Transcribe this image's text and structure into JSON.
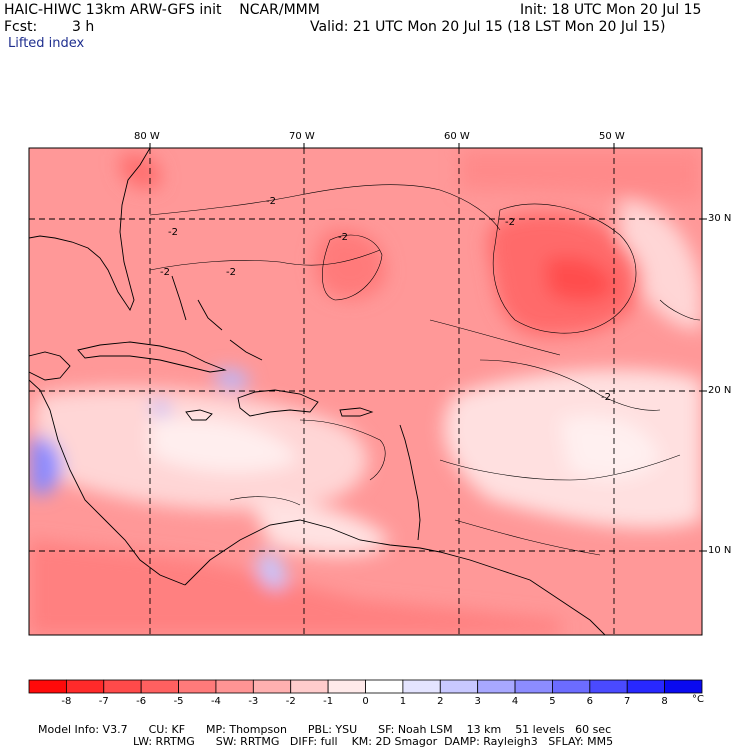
{
  "header": {
    "title": "HAIC-HIWC 13km ARW-GFS init    NCAR/MMM",
    "init": "Init: 18 UTC Mon 20 Jul 15",
    "fcst_label": "Fcst:",
    "fcst_value": "3 h",
    "valid": "Valid: 21 UTC Mon 20 Jul 15 (18 LST Mon 20 Jul 15)",
    "field": "Lifted index"
  },
  "map": {
    "lon_labels": [
      "80 W",
      "70 W",
      "60 W",
      "50 W"
    ],
    "lat_labels": [
      "30 N",
      "20 N",
      "10 N"
    ],
    "contour_labels": [
      "-2",
      "-2",
      "-2",
      "-2",
      "-2",
      "-2",
      "-2"
    ]
  },
  "colorbar": {
    "tick_labels": [
      "-8",
      "-7",
      "-6",
      "-5",
      "-4",
      "-3",
      "-2",
      "-1",
      "0",
      "1",
      "2",
      "3",
      "4",
      "5",
      "6",
      "7",
      "8"
    ],
    "unit": "°C",
    "colors": [
      "#ff0a0a",
      "#ff2a2a",
      "#ff4a4a",
      "#ff6060",
      "#ff7a7a",
      "#ff9494",
      "#ffb0b0",
      "#ffcccc",
      "#ffeaea",
      "#ffffff",
      "#e4e4ff",
      "#c8c8ff",
      "#a8a8ff",
      "#8c8cff",
      "#6c6cff",
      "#4a4aff",
      "#2828ff",
      "#0a0af0"
    ]
  },
  "model_info": {
    "line1": [
      "Model Info: V3.7",
      "CU: KF",
      "MP: Thompson",
      "PBL: YSU",
      "SF: Noah LSM",
      "13 km",
      "51 levels",
      "60 sec"
    ],
    "line2": [
      "LW: RRTMG",
      "SW: RRTMG",
      "DIFF: full",
      "KM: 2D Smagor",
      "DAMP: Rayleigh3",
      "SFLAY: MM5"
    ]
  }
}
